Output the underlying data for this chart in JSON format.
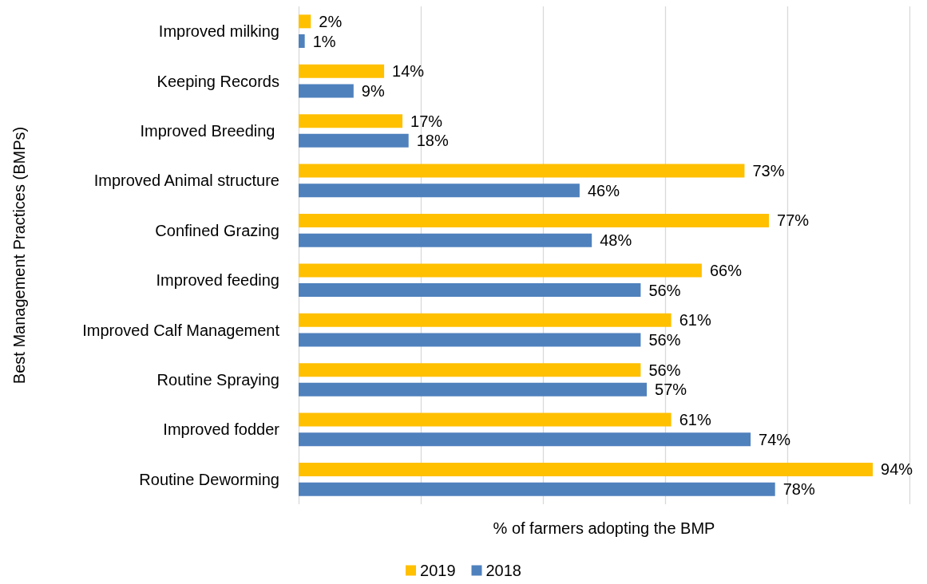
{
  "chart_data": {
    "type": "bar",
    "orientation": "horizontal",
    "xlabel": "% of farmers adopting the BMP",
    "ylabel": "Best Management Practices (BMPs)",
    "categories": [
      "Improved milking",
      "Keeping Records",
      "Improved Breeding ",
      "Improved Animal structure",
      "Confined Grazing",
      "Improved feeding",
      "Improved Calf Management",
      "Routine Spraying",
      "Improved fodder",
      "Routine Deworming"
    ],
    "series": [
      {
        "name": "2019",
        "color": "#ffc000",
        "values": [
          2,
          14,
          17,
          73,
          77,
          66,
          61,
          56,
          61,
          94
        ],
        "value_labels": [
          "2%",
          "14%",
          "17%",
          "73%",
          "77%",
          "66%",
          "61%",
          "56%",
          "61%",
          "94%"
        ]
      },
      {
        "name": "2018",
        "color": "#4f81bd",
        "values": [
          1,
          9,
          18,
          46,
          48,
          56,
          56,
          57,
          74,
          78
        ],
        "value_labels": [
          "1%",
          "9%",
          "18%",
          "46%",
          "48%",
          "56%",
          "56%",
          "57%",
          "74%",
          "78%"
        ]
      }
    ],
    "xlim": [
      0,
      100
    ],
    "xticks": [
      {
        "value": 0,
        "label": null
      },
      {
        "value": 20,
        "label": null
      },
      {
        "value": 40,
        "label": null
      },
      {
        "value": 60,
        "label": null
      },
      {
        "value": 80,
        "label": null
      },
      {
        "value": 100,
        "label": null
      }
    ],
    "tick_labels": "y",
    "grid": "x",
    "legend": "bottom"
  }
}
